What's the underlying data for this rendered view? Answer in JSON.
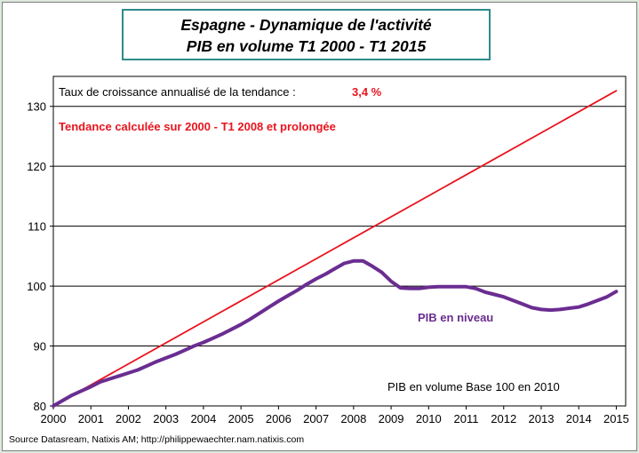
{
  "chart_data": {
    "type": "line",
    "title": [
      "Espagne - Dynamique de l'activité",
      "PIB en volume T1 2000 - T1 2015"
    ],
    "xlabel": "",
    "ylabel": "",
    "xlim": [
      2000,
      2015.25
    ],
    "ylim": [
      80,
      135
    ],
    "x_ticks": [
      "2000",
      "2001",
      "2002",
      "2003",
      "2004",
      "2005",
      "2006",
      "2007",
      "2008",
      "2009",
      "2010",
      "2011",
      "2012",
      "2013",
      "2014",
      "2015"
    ],
    "y_ticks": [
      "80",
      "90",
      "100",
      "110",
      "120",
      "130"
    ],
    "grid": "horizontal",
    "annotations": {
      "growth_label": "Taux de croissance annualisé de la tendance :",
      "growth_value": "3,4 %",
      "trend_note": "Tendance calculée sur 2000 - T1 2008 et prolongée",
      "series_label": "PIB en niveau",
      "base_note": "PIB en volume Base 100 en 2010"
    },
    "series": [
      {
        "name": "Tendance",
        "color": "#e8141e",
        "x": [
          2000.0,
          2015.0
        ],
        "values": [
          80.0,
          132.6
        ]
      },
      {
        "name": "PIB en niveau",
        "color": "#6a2d91",
        "x": [
          2000.0,
          2000.25,
          2000.5,
          2000.75,
          2001.0,
          2001.25,
          2001.5,
          2001.75,
          2002.0,
          2002.25,
          2002.5,
          2002.75,
          2003.0,
          2003.25,
          2003.5,
          2003.75,
          2004.0,
          2004.25,
          2004.5,
          2004.75,
          2005.0,
          2005.25,
          2005.5,
          2005.75,
          2006.0,
          2006.25,
          2006.5,
          2006.75,
          2007.0,
          2007.25,
          2007.5,
          2007.75,
          2008.0,
          2008.25,
          2008.5,
          2008.75,
          2009.0,
          2009.25,
          2009.5,
          2009.75,
          2010.0,
          2010.25,
          2010.5,
          2010.75,
          2011.0,
          2011.25,
          2011.5,
          2011.75,
          2012.0,
          2012.25,
          2012.5,
          2012.75,
          2013.0,
          2013.25,
          2013.5,
          2013.75,
          2014.0,
          2014.25,
          2014.5,
          2014.75,
          2015.0
        ],
        "values": [
          80.0,
          80.9,
          81.8,
          82.5,
          83.2,
          84.0,
          84.5,
          85.0,
          85.5,
          86.0,
          86.7,
          87.4,
          88.0,
          88.6,
          89.3,
          90.0,
          90.6,
          91.3,
          92.0,
          92.8,
          93.6,
          94.5,
          95.5,
          96.5,
          97.5,
          98.4,
          99.3,
          100.3,
          101.2,
          102.0,
          102.9,
          103.8,
          104.2,
          104.2,
          103.3,
          102.3,
          100.8,
          99.7,
          99.6,
          99.6,
          99.8,
          99.9,
          99.9,
          99.9,
          99.9,
          99.6,
          99.0,
          98.6,
          98.2,
          97.6,
          97.0,
          96.4,
          96.1,
          96.0,
          96.1,
          96.3,
          96.5,
          97.0,
          97.6,
          98.2,
          99.1
        ]
      }
    ]
  },
  "source": "Source Datasream, Natixis AM;  http://philippewaechter.nam.natixis.com"
}
